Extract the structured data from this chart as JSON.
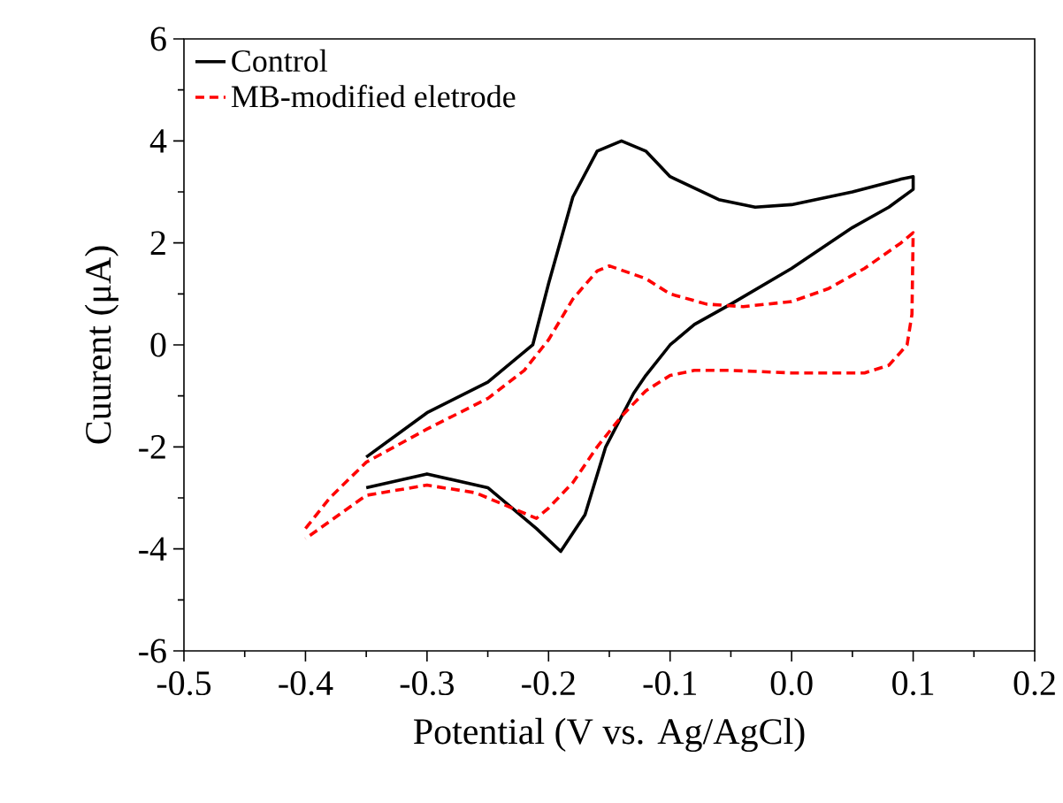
{
  "chart_data": {
    "type": "line",
    "xlabel": "Potential (V vs. Ag/AgCl)",
    "ylabel": "Cuurent (μA)",
    "xlim": [
      -0.5,
      0.2
    ],
    "ylim": [
      -6,
      6
    ],
    "xticks": [
      {
        "value": -0.5,
        "label": "-0.5"
      },
      {
        "value": -0.4,
        "label": "-0.4"
      },
      {
        "value": -0.3,
        "label": "-0.3"
      },
      {
        "value": -0.2,
        "label": "-0.2"
      },
      {
        "value": -0.1,
        "label": "-0.1"
      },
      {
        "value": 0.0,
        "label": "0.0"
      },
      {
        "value": 0.1,
        "label": "0.1"
      },
      {
        "value": 0.2,
        "label": "0.2"
      }
    ],
    "yticks": [
      -6,
      -4,
      -2,
      0,
      2,
      4,
      6
    ],
    "grid": false,
    "legend": "top left",
    "marker": "none",
    "series": [
      {
        "name": "Control",
        "color": "#000000",
        "line_style": "solid",
        "x": [
          -0.35,
          -0.3,
          -0.25,
          -0.213,
          -0.2,
          -0.18,
          -0.16,
          -0.14,
          -0.12,
          -0.1,
          -0.06,
          -0.03,
          0.0,
          0.05,
          0.09,
          0.1,
          0.1,
          0.08,
          0.05,
          0.0,
          -0.05,
          -0.08,
          -0.1,
          -0.12,
          -0.13,
          -0.153,
          -0.17,
          -0.19,
          -0.21,
          -0.25,
          -0.3,
          -0.35
        ],
        "values": [
          -2.2,
          -1.33,
          -0.73,
          0.0,
          1.2,
          2.9,
          3.8,
          4.0,
          3.8,
          3.3,
          2.85,
          2.7,
          2.75,
          3.0,
          3.25,
          3.3,
          3.05,
          2.7,
          2.3,
          1.5,
          0.8,
          0.4,
          0.0,
          -0.6,
          -0.95,
          -2.0,
          -3.33,
          -4.05,
          -3.6,
          -2.8,
          -2.53,
          -2.8
        ]
      },
      {
        "name": "MB-modified eletrode",
        "color": "#ff0000",
        "line_style": "dashed",
        "x": [
          -0.4,
          -0.38,
          -0.35,
          -0.3,
          -0.25,
          -0.22,
          -0.2,
          -0.18,
          -0.16,
          -0.15,
          -0.12,
          -0.1,
          -0.07,
          -0.04,
          0.0,
          0.03,
          0.06,
          0.09,
          0.1,
          0.099,
          0.095,
          0.08,
          0.06,
          0.0,
          -0.05,
          -0.08,
          -0.1,
          -0.12,
          -0.14,
          -0.16,
          -0.18,
          -0.2,
          -0.21,
          -0.23,
          -0.26,
          -0.3,
          -0.35,
          -0.4
        ],
        "values": [
          -3.6,
          -3.0,
          -2.3,
          -1.65,
          -1.05,
          -0.5,
          0.1,
          0.9,
          1.45,
          1.55,
          1.3,
          1.0,
          0.8,
          0.75,
          0.85,
          1.1,
          1.5,
          2.0,
          2.2,
          0.6,
          0.0,
          -0.4,
          -0.55,
          -0.55,
          -0.5,
          -0.5,
          -0.6,
          -0.9,
          -1.4,
          -2.0,
          -2.7,
          -3.2,
          -3.4,
          -3.2,
          -2.9,
          -2.75,
          -2.95,
          -3.8
        ]
      }
    ]
  }
}
